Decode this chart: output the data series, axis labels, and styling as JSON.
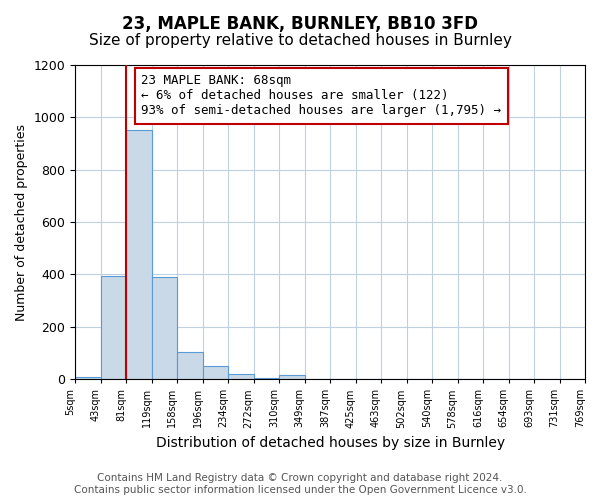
{
  "title": "23, MAPLE BANK, BURNLEY, BB10 3FD",
  "subtitle": "Size of property relative to detached houses in Burnley",
  "xlabel": "Distribution of detached houses by size in Burnley",
  "ylabel": "Number of detached properties",
  "footer_line1": "Contains HM Land Registry data © Crown copyright and database right 2024.",
  "footer_line2": "Contains public sector information licensed under the Open Government Licence v3.0.",
  "annotation_line1": "23 MAPLE BANK: 68sqm",
  "annotation_line2": "← 6% of detached houses are smaller (122)",
  "annotation_line3": "93% of semi-detached houses are larger (1,795) →",
  "bin_labels": [
    "5sqm",
    "43sqm",
    "81sqm",
    "119sqm",
    "158sqm",
    "196sqm",
    "234sqm",
    "272sqm",
    "310sqm",
    "349sqm",
    "387sqm",
    "425sqm",
    "463sqm",
    "502sqm",
    "540sqm",
    "578sqm",
    "616sqm",
    "654sqm",
    "693sqm",
    "731sqm",
    "769sqm"
  ],
  "bar_values": [
    10,
    395,
    950,
    390,
    105,
    52,
    20,
    5,
    15,
    0,
    0,
    0,
    0,
    0,
    0,
    0,
    0,
    0,
    0,
    0
  ],
  "bar_color": "#c9d9e8",
  "bar_edge_color": "#5b9bd5",
  "vline_color": "#c00000",
  "ylim": [
    0,
    1200
  ],
  "yticks": [
    0,
    200,
    400,
    600,
    800,
    1000,
    1200
  ],
  "annotation_box_edge_color": "#c00000",
  "annotation_box_face_color": "#ffffff",
  "background_color": "#ffffff",
  "grid_color": "#c0d0e0",
  "title_fontsize": 12,
  "subtitle_fontsize": 11,
  "xlabel_fontsize": 10,
  "ylabel_fontsize": 9,
  "annotation_fontsize": 9,
  "footer_fontsize": 7.5
}
